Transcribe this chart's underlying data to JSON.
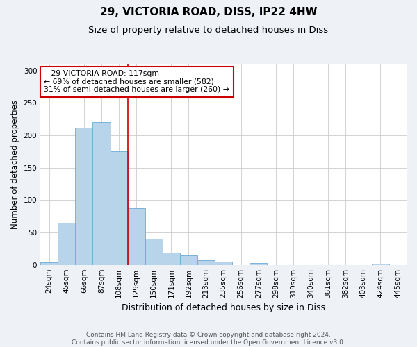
{
  "title1": "29, VICTORIA ROAD, DISS, IP22 4HW",
  "title2": "Size of property relative to detached houses in Diss",
  "xlabel": "Distribution of detached houses by size in Diss",
  "ylabel": "Number of detached properties",
  "categories": [
    "24sqm",
    "45sqm",
    "66sqm",
    "87sqm",
    "108sqm",
    "129sqm",
    "150sqm",
    "171sqm",
    "192sqm",
    "213sqm",
    "235sqm",
    "256sqm",
    "277sqm",
    "298sqm",
    "319sqm",
    "340sqm",
    "361sqm",
    "382sqm",
    "403sqm",
    "424sqm",
    "445sqm"
  ],
  "values": [
    4,
    65,
    212,
    220,
    175,
    88,
    40,
    19,
    15,
    7,
    5,
    0,
    3,
    0,
    0,
    0,
    0,
    0,
    0,
    2,
    0
  ],
  "bar_color": "#b8d4ea",
  "bar_edge_color": "#6aaad4",
  "vline_x": 4.5,
  "vline_color": "#cc0000",
  "annotation_line1": "   29 VICTORIA ROAD: 117sqm   ",
  "annotation_line2": "← 69% of detached houses are smaller (582)",
  "annotation_line3": "31% of semi-detached houses are larger (260) →",
  "annotation_box_color": "#ffffff",
  "annotation_box_edge": "#cc0000",
  "ylim": [
    0,
    310
  ],
  "yticks": [
    0,
    50,
    100,
    150,
    200,
    250,
    300
  ],
  "footer": "Contains HM Land Registry data © Crown copyright and database right 2024.\nContains public sector information licensed under the Open Government Licence v3.0.",
  "bg_color": "#eef2f7",
  "plot_bg_color": "#ffffff",
  "title1_fontsize": 11,
  "title2_fontsize": 9.5,
  "xlabel_fontsize": 9,
  "ylabel_fontsize": 8.5,
  "tick_fontsize": 7.5,
  "footer_fontsize": 6.5,
  "annotation_fontsize": 7.8
}
